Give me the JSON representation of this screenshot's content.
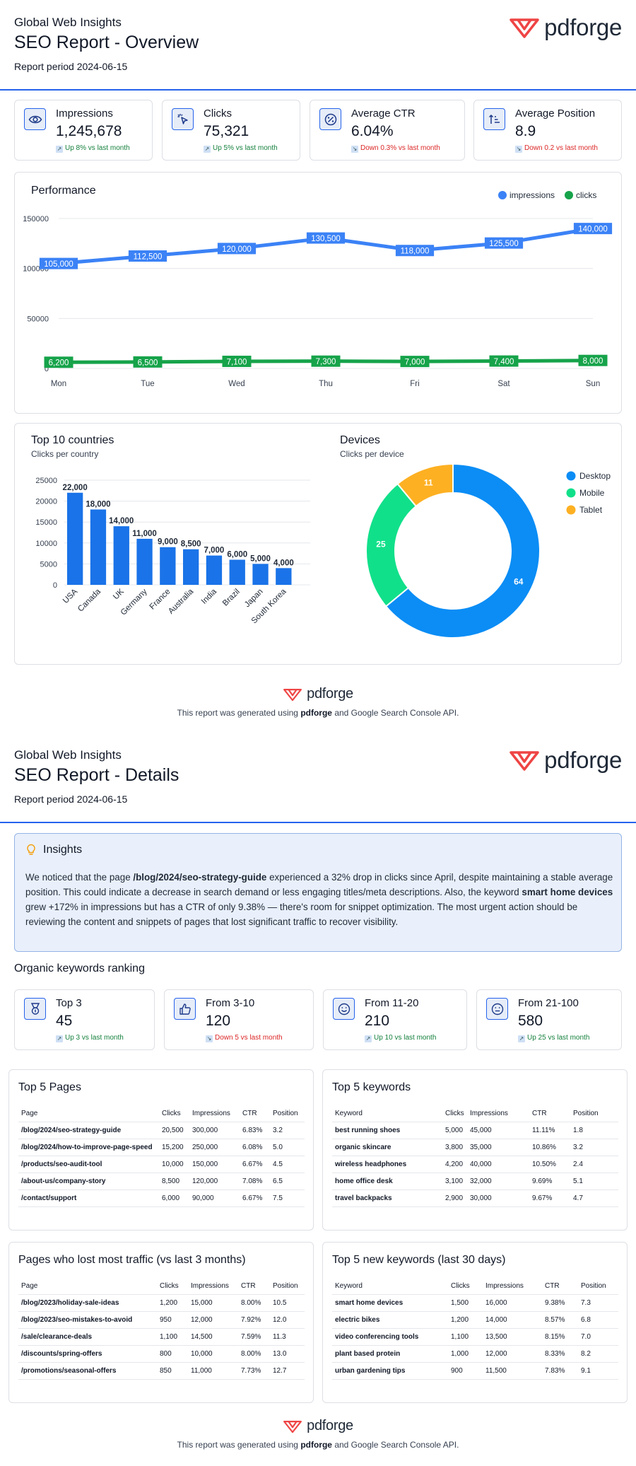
{
  "brand": {
    "logo_text": "pdforge",
    "accent": "#2563eb",
    "logo_color": "#ef4444"
  },
  "page1": {
    "org": "Global Web Insights",
    "title": "SEO Report - Overview",
    "period": "Report period 2024-06-15",
    "kpis": [
      {
        "icon": "eye-icon",
        "label": "Impressions",
        "value": "1,245,678",
        "delta": "Up 8% vs last month",
        "direction": "up"
      },
      {
        "icon": "cursor-click-icon",
        "label": "Clicks",
        "value": "75,321",
        "delta": "Up 5% vs last month",
        "direction": "up"
      },
      {
        "icon": "percent-gauge-icon",
        "label": "Average CTR",
        "value": "6.04%",
        "delta": "Down 0.3% vs last month",
        "direction": "down"
      },
      {
        "icon": "sort-ascending-icon",
        "label": "Average Position",
        "value": "8.9",
        "delta": "Down 0.2 vs last month",
        "direction": "down"
      }
    ],
    "performance_title": "Performance",
    "countries_title": "Top 10 countries",
    "countries_subtitle": "Clicks per country",
    "devices_title": "Devices",
    "devices_subtitle": "Clicks per device"
  },
  "page2": {
    "org": "Global Web Insights",
    "title": "SEO Report - Details",
    "period": "Report period 2024-06-15",
    "insights_title": "Insights",
    "insights_parts": [
      "We noticed that the page ",
      "/blog/2024/seo-strategy-guide",
      " experienced a 32% drop in clicks since April, despite maintaining a stable average position. This could indicate a decrease in search demand or less engaging titles/meta descriptions. Also, the keyword ",
      "smart home devices",
      " grew +172% in impressions but has a CTR of only 9.38% — there's room for snippet optimization. The most urgent action should be reviewing the content and snippets of pages that lost significant traffic to recover visibility."
    ],
    "ranking_title": "Organic keywords ranking",
    "ranking": [
      {
        "icon": "medal-icon",
        "label": "Top 3",
        "value": "45",
        "delta": "Up 3 vs last month",
        "direction": "up"
      },
      {
        "icon": "thumbs-up-icon",
        "label": "From 3-10",
        "value": "120",
        "delta": "Down 5 vs last month",
        "direction": "down"
      },
      {
        "icon": "smile-icon",
        "label": "From 11-20",
        "value": "210",
        "delta": "Up 10 vs last month",
        "direction": "up"
      },
      {
        "icon": "neutral-face-icon",
        "label": "From 21-100",
        "value": "580",
        "delta": "Up 25 vs last month",
        "direction": "up"
      }
    ],
    "tables": [
      {
        "title": "Top 5 Pages",
        "columns": [
          "Page",
          "Clicks",
          "Impressions",
          "CTR",
          "Position"
        ],
        "rows": [
          [
            "/blog/2024/seo-strategy-guide",
            "20,500",
            "300,000",
            "6.83%",
            "3.2"
          ],
          [
            "/blog/2024/how-to-improve-page-speed",
            "15,200",
            "250,000",
            "6.08%",
            "5.0"
          ],
          [
            "/products/seo-audit-tool",
            "10,000",
            "150,000",
            "6.67%",
            "4.5"
          ],
          [
            "/about-us/company-story",
            "8,500",
            "120,000",
            "7.08%",
            "6.5"
          ],
          [
            "/contact/support",
            "6,000",
            "90,000",
            "6.67%",
            "7.5"
          ]
        ]
      },
      {
        "title": "Top 5 keywords",
        "columns": [
          "Keyword",
          "Clicks",
          "Impressions",
          "CTR",
          "Position"
        ],
        "rows": [
          [
            "best running shoes",
            "5,000",
            "45,000",
            "11.11%",
            "1.8"
          ],
          [
            "organic skincare",
            "3,800",
            "35,000",
            "10.86%",
            "3.2"
          ],
          [
            "wireless headphones",
            "4,200",
            "40,000",
            "10.50%",
            "2.4"
          ],
          [
            "home office desk",
            "3,100",
            "32,000",
            "9.69%",
            "5.1"
          ],
          [
            "travel backpacks",
            "2,900",
            "30,000",
            "9.67%",
            "4.7"
          ]
        ]
      },
      {
        "title": "Pages who lost most traffic (vs last 3 months)",
        "columns": [
          "Page",
          "Clicks",
          "Impressions",
          "CTR",
          "Position"
        ],
        "rows": [
          [
            "/blog/2023/holiday-sale-ideas",
            "1,200",
            "15,000",
            "8.00%",
            "10.5"
          ],
          [
            "/blog/2023/seo-mistakes-to-avoid",
            "950",
            "12,000",
            "7.92%",
            "12.0"
          ],
          [
            "/sale/clearance-deals",
            "1,100",
            "14,500",
            "7.59%",
            "11.3"
          ],
          [
            "/discounts/spring-offers",
            "800",
            "10,000",
            "8.00%",
            "13.0"
          ],
          [
            "/promotions/seasonal-offers",
            "850",
            "11,000",
            "7.73%",
            "12.7"
          ]
        ]
      },
      {
        "title": "Top 5 new keywords (last 30 days)",
        "columns": [
          "Keyword",
          "Clicks",
          "Impressions",
          "CTR",
          "Position"
        ],
        "rows": [
          [
            "smart home devices",
            "1,500",
            "16,000",
            "9.38%",
            "7.3"
          ],
          [
            "electric bikes",
            "1,200",
            "14,000",
            "8.57%",
            "6.8"
          ],
          [
            "video conferencing tools",
            "1,100",
            "13,500",
            "8.15%",
            "7.0"
          ],
          [
            "plant based protein",
            "1,000",
            "12,000",
            "8.33%",
            "8.2"
          ],
          [
            "urban gardening tips",
            "900",
            "11,500",
            "7.83%",
            "9.1"
          ]
        ]
      }
    ]
  },
  "footer": {
    "before": "This report was generated using ",
    "bold": "pdforge",
    "after": " and Google Search Console API."
  },
  "chart_data": [
    {
      "type": "line",
      "title": "Performance",
      "categories": [
        "Mon",
        "Tue",
        "Wed",
        "Thu",
        "Fri",
        "Sat",
        "Sun"
      ],
      "series": [
        {
          "name": "impressions",
          "color": "#3b82f6",
          "values": [
            105000,
            112500,
            120000,
            130500,
            118000,
            125500,
            140000
          ]
        },
        {
          "name": "clicks",
          "color": "#16a34a",
          "values": [
            6200,
            6500,
            7100,
            7300,
            7000,
            7400,
            8000
          ]
        }
      ],
      "ylim": [
        0,
        150000
      ],
      "yticks": [
        0,
        50000,
        100000,
        150000
      ],
      "grid": true,
      "legend": "top-right",
      "data_labels": true
    },
    {
      "type": "bar",
      "title": "Top 10 countries",
      "subtitle": "Clicks per country",
      "categories": [
        "USA",
        "Canada",
        "UK",
        "Germany",
        "France",
        "Australia",
        "India",
        "Brazil",
        "Japan",
        "South Korea"
      ],
      "values": [
        22000,
        18000,
        14000,
        11000,
        9000,
        8500,
        7000,
        6000,
        5000,
        4000
      ],
      "color": "#1a73e8",
      "ylim": [
        0,
        25000
      ],
      "yticks": [
        0,
        5000,
        10000,
        15000,
        20000,
        25000
      ],
      "grid": true,
      "data_labels": true
    },
    {
      "type": "pie",
      "style": "donut",
      "title": "Devices",
      "subtitle": "Clicks per device",
      "labels": [
        "Desktop",
        "Mobile",
        "Tablet"
      ],
      "values": [
        64,
        25,
        11
      ],
      "colors": [
        "#0b8df5",
        "#11e08a",
        "#fdb022"
      ],
      "legend": "right"
    }
  ]
}
